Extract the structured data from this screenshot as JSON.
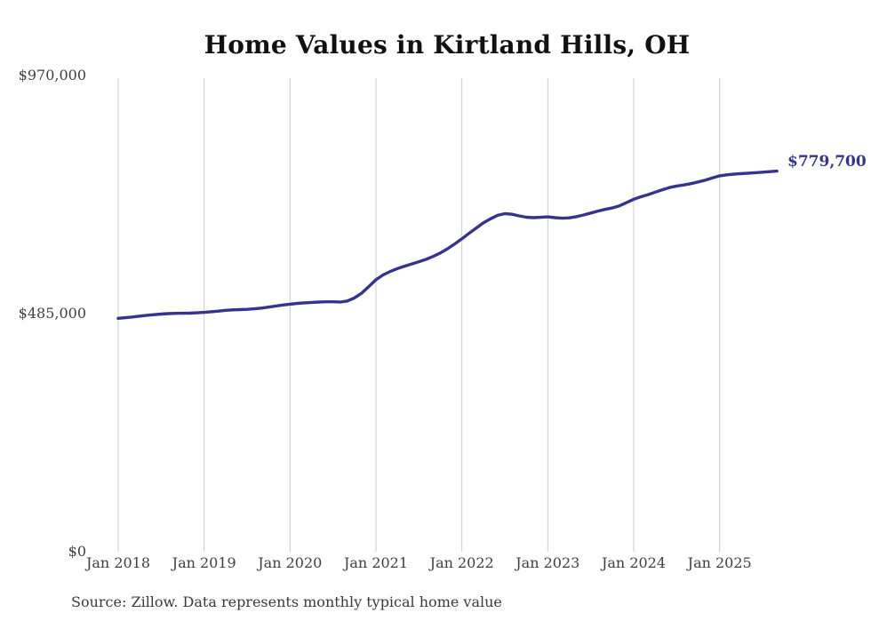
{
  "header": {
    "title": "Home Values in Kirtland Hills, OH"
  },
  "y_axis": {
    "labels": [
      "$970,000",
      "$485,000",
      "$0"
    ]
  },
  "x_axis": {
    "labels": [
      "Jan 2018",
      "Jan 2019",
      "Jan 2020",
      "Jan 2021",
      "Jan 2022",
      "Jan 2023",
      "Jan 2024",
      "Jan 2025"
    ]
  },
  "annotation": {
    "end_label": "$779,700"
  },
  "footer": {
    "source": "Source: Zillow. Data represents monthly typical home value"
  },
  "colors": {
    "line": "#36338f",
    "grid": "#cccccc",
    "title_text": "#111111",
    "axis_text": "#3f3f3f",
    "end_label_text": "#36338f",
    "background": "#ffffff"
  },
  "chart_data": {
    "type": "line",
    "title": "Home Values in Kirtland Hills, OH",
    "xlabel": "",
    "ylabel": "",
    "ylim": [
      0,
      970000
    ],
    "y_ticks": [
      970000,
      485000,
      0
    ],
    "y_tick_labels": [
      "$970,000",
      "$485,000",
      "$0"
    ],
    "x_tick_labels": [
      "Jan 2018",
      "Jan 2019",
      "Jan 2020",
      "Jan 2021",
      "Jan 2022",
      "Jan 2023",
      "Jan 2024",
      "Jan 2025"
    ],
    "x_start_month": "2018-01",
    "x_end_month": "2025-09",
    "frequency": "monthly",
    "grid": "vertical-only",
    "legend_position": "none",
    "latest_value": 779700,
    "series": [
      {
        "name": "Typical home value",
        "values": [
          478100,
          479300,
          480900,
          482700,
          484300,
          485600,
          486800,
          487700,
          488200,
          488400,
          488700,
          489400,
          490300,
          491500,
          492900,
          494400,
          495400,
          495900,
          496500,
          497600,
          499100,
          501000,
          503200,
          505300,
          507100,
          508600,
          509800,
          510700,
          511400,
          511900,
          512000,
          511400,
          513500,
          520000,
          529500,
          543000,
          557000,
          567000,
          574000,
          580000,
          585000,
          589500,
          594000,
          599000,
          605000,
          612000,
          620500,
          630500,
          641000,
          652000,
          663000,
          673500,
          682000,
          689000,
          692500,
          691200,
          688000,
          685200,
          684200,
          685000,
          686000,
          684200,
          683200,
          684000,
          686200,
          689800,
          693800,
          697800,
          701200,
          704200,
          708400,
          715000,
          722000,
          727000,
          731500,
          736500,
          741500,
          746000,
          749000,
          751200,
          754000,
          757500,
          761000,
          765800,
          770000,
          772000,
          773400,
          774500,
          775500,
          776400,
          777400,
          778600,
          779700
        ]
      }
    ]
  }
}
